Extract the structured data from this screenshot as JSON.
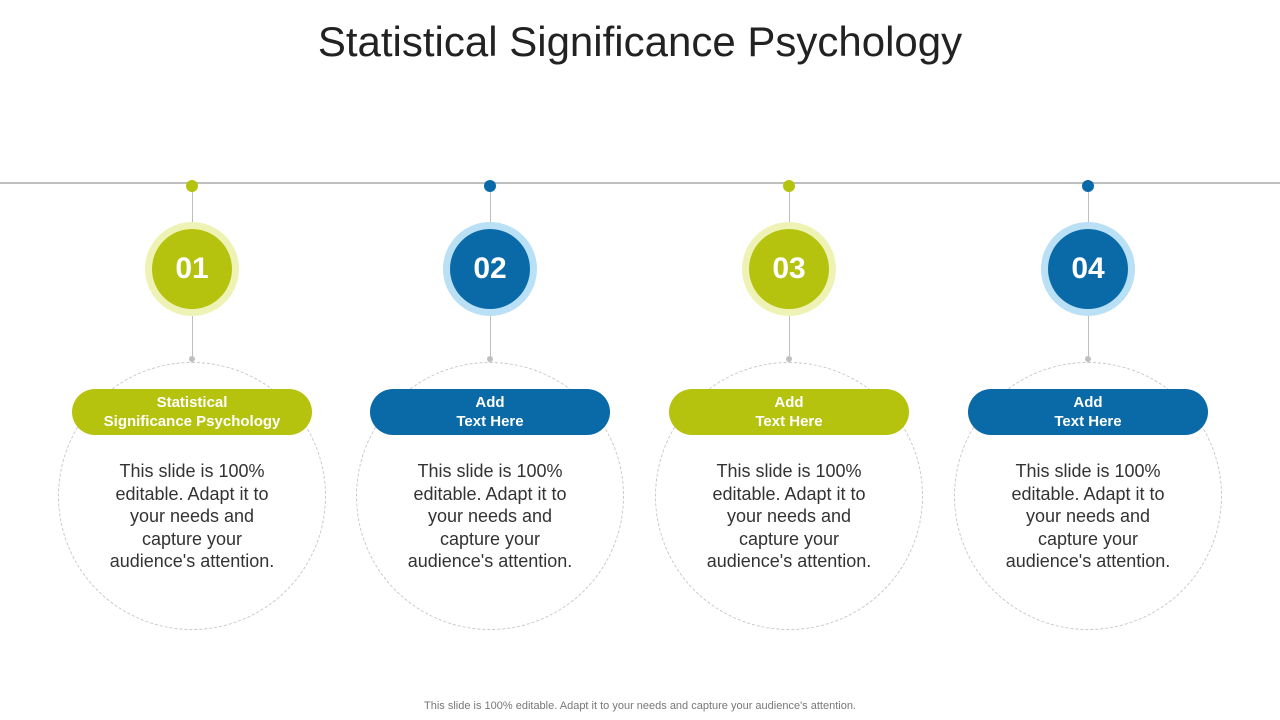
{
  "title": "Statistical Significance Psychology",
  "colors": {
    "green": "#b5c30f",
    "green_halo": "#eef3b5",
    "blue": "#0a6aa8",
    "blue_halo": "#b9e0f5",
    "line": "#bfbfbf"
  },
  "steps": [
    {
      "number": "01",
      "heading": "Statistical\nSignificance Psychology",
      "text": "This slide is 100% editable. Adapt it to your needs and capture your audience's attention.",
      "color": "#b5c30f",
      "halo": "#eef3b5"
    },
    {
      "number": "02",
      "heading": "Add\nText Here",
      "text": "This slide is 100% editable. Adapt it to your needs and capture your audience's attention.",
      "color": "#0a6aa8",
      "halo": "#b9e0f5"
    },
    {
      "number": "03",
      "heading": "Add\nText Here",
      "text": "This slide is 100% editable. Adapt it to your needs and capture your audience's attention.",
      "color": "#b5c30f",
      "halo": "#eef3b5"
    },
    {
      "number": "04",
      "heading": "Add\nText Here",
      "text": "This slide is 100% editable. Adapt it to your needs and capture your audience's attention.",
      "color": "#0a6aa8",
      "halo": "#b9e0f5"
    }
  ],
  "footer": "This slide is 100% editable. Adapt it to your needs and capture your audience's attention."
}
